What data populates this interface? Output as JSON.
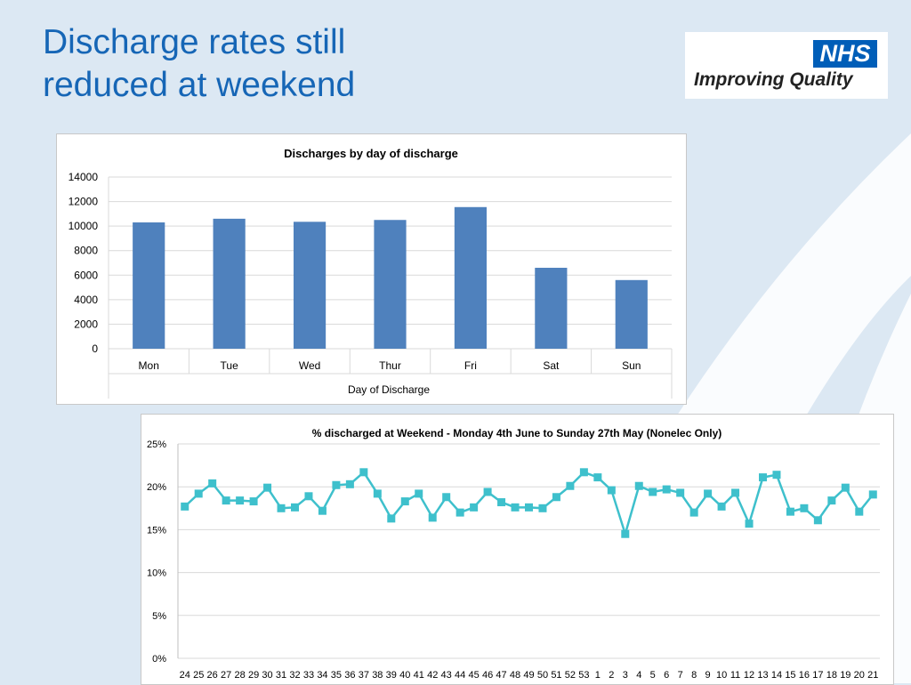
{
  "slide": {
    "title_line1": "Discharge rates still",
    "title_line2": "reduced at weekend"
  },
  "logo": {
    "badge": "NHS",
    "tagline": "Improving Quality",
    "badge_color": "#005eb8"
  },
  "colors": {
    "title": "#1666b6",
    "bar": "#4f81bd",
    "line": "#3ec0cc",
    "background": "#dce8f3"
  },
  "chart_data": [
    {
      "type": "bar",
      "title": "Discharges by day of discharge",
      "categories": [
        "Mon",
        "Tue",
        "Wed",
        "Thur",
        "Fri",
        "Sat",
        "Sun"
      ],
      "values": [
        10300,
        10600,
        10350,
        10500,
        11550,
        6600,
        5600
      ],
      "xlabel": "Day of Discharge",
      "ylabel": "",
      "ylim": [
        0,
        14000
      ],
      "yticks": [
        0,
        2000,
        4000,
        6000,
        8000,
        10000,
        12000,
        14000
      ],
      "grid": true,
      "legend": "none"
    },
    {
      "type": "line",
      "title": "% discharged at Weekend - Monday 4th June to Sunday 27th May (Nonelec Only)",
      "categories": [
        "24",
        "25",
        "26",
        "27",
        "28",
        "29",
        "30",
        "31",
        "32",
        "33",
        "34",
        "35",
        "36",
        "37",
        "38",
        "39",
        "40",
        "41",
        "42",
        "43",
        "44",
        "45",
        "46",
        "47",
        "48",
        "49",
        "50",
        "51",
        "52",
        "53",
        "1",
        "2",
        "3",
        "4",
        "5",
        "6",
        "7",
        "8",
        "9",
        "10",
        "11",
        "12",
        "13",
        "14",
        "15",
        "16",
        "17",
        "18",
        "19",
        "20",
        "21"
      ],
      "values": [
        17.7,
        19.2,
        20.4,
        18.4,
        18.4,
        18.3,
        19.9,
        17.5,
        17.6,
        18.9,
        17.2,
        20.2,
        20.3,
        21.7,
        19.2,
        16.3,
        18.3,
        19.2,
        16.4,
        18.8,
        17.0,
        17.6,
        19.4,
        18.2,
        17.6,
        17.6,
        17.5,
        18.8,
        20.1,
        21.7,
        21.1,
        19.6,
        14.5,
        20.1,
        19.4,
        19.7,
        19.3,
        17.0,
        19.2,
        17.7,
        19.3,
        15.7,
        21.1,
        21.4,
        17.1,
        17.5,
        16.1,
        18.4,
        19.9,
        17.1,
        19.1
      ],
      "xlabel": "",
      "ylabel": "",
      "ylim": [
        0,
        25
      ],
      "yticks": [
        "0%",
        "5%",
        "10%",
        "15%",
        "20%",
        "25%"
      ],
      "grid": true,
      "legend": "none"
    }
  ]
}
